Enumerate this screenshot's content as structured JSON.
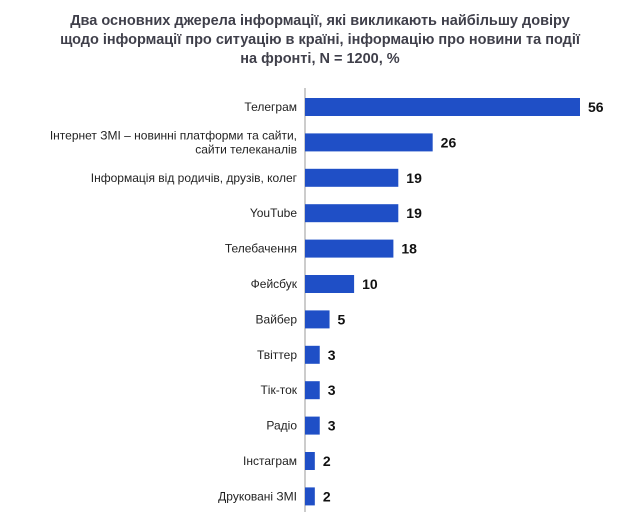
{
  "chart_data": {
    "type": "bar",
    "orientation": "horizontal",
    "title": "Два основних джерела інформації, які викликають найбільшу довіру щодо інформації про ситуацію в країні, інформацію про новини та події на фронті, N = 1200, %",
    "categories": [
      "Телеграм",
      "Інтернет ЗМІ – новинні платформи та сайти, сайти телеканалів",
      "Інформація від родичів, друзів, колег",
      "YouTube",
      "Телебачення",
      "Фейсбук",
      "Вайбер",
      "Твіттер",
      "Тік-ток",
      "Радіо",
      "Інстаграм",
      "Друковані ЗМІ"
    ],
    "category_lines": [
      [
        "Телеграм"
      ],
      [
        "Інтернет ЗМІ – новинні платформи та сайти,",
        "сайти телеканалів"
      ],
      [
        "Інформація від родичів, друзів, колег"
      ],
      [
        "YouTube"
      ],
      [
        "Телебачення"
      ],
      [
        "Фейсбук"
      ],
      [
        "Вайбер"
      ],
      [
        "Твіттер"
      ],
      [
        "Тік-ток"
      ],
      [
        "Радіо"
      ],
      [
        "Інстаграм"
      ],
      [
        "Друковані ЗМІ"
      ]
    ],
    "values": [
      56,
      26,
      19,
      19,
      18,
      10,
      5,
      3,
      3,
      3,
      2,
      2
    ],
    "value_labels": [
      "56",
      "26",
      "19",
      "19",
      "18",
      "10",
      "5",
      "3",
      "3",
      "3",
      "2",
      "2"
    ],
    "xlim": [
      0,
      56
    ],
    "grid": false,
    "bar_color": "#1f4fc6",
    "axis_color": "#999999"
  }
}
